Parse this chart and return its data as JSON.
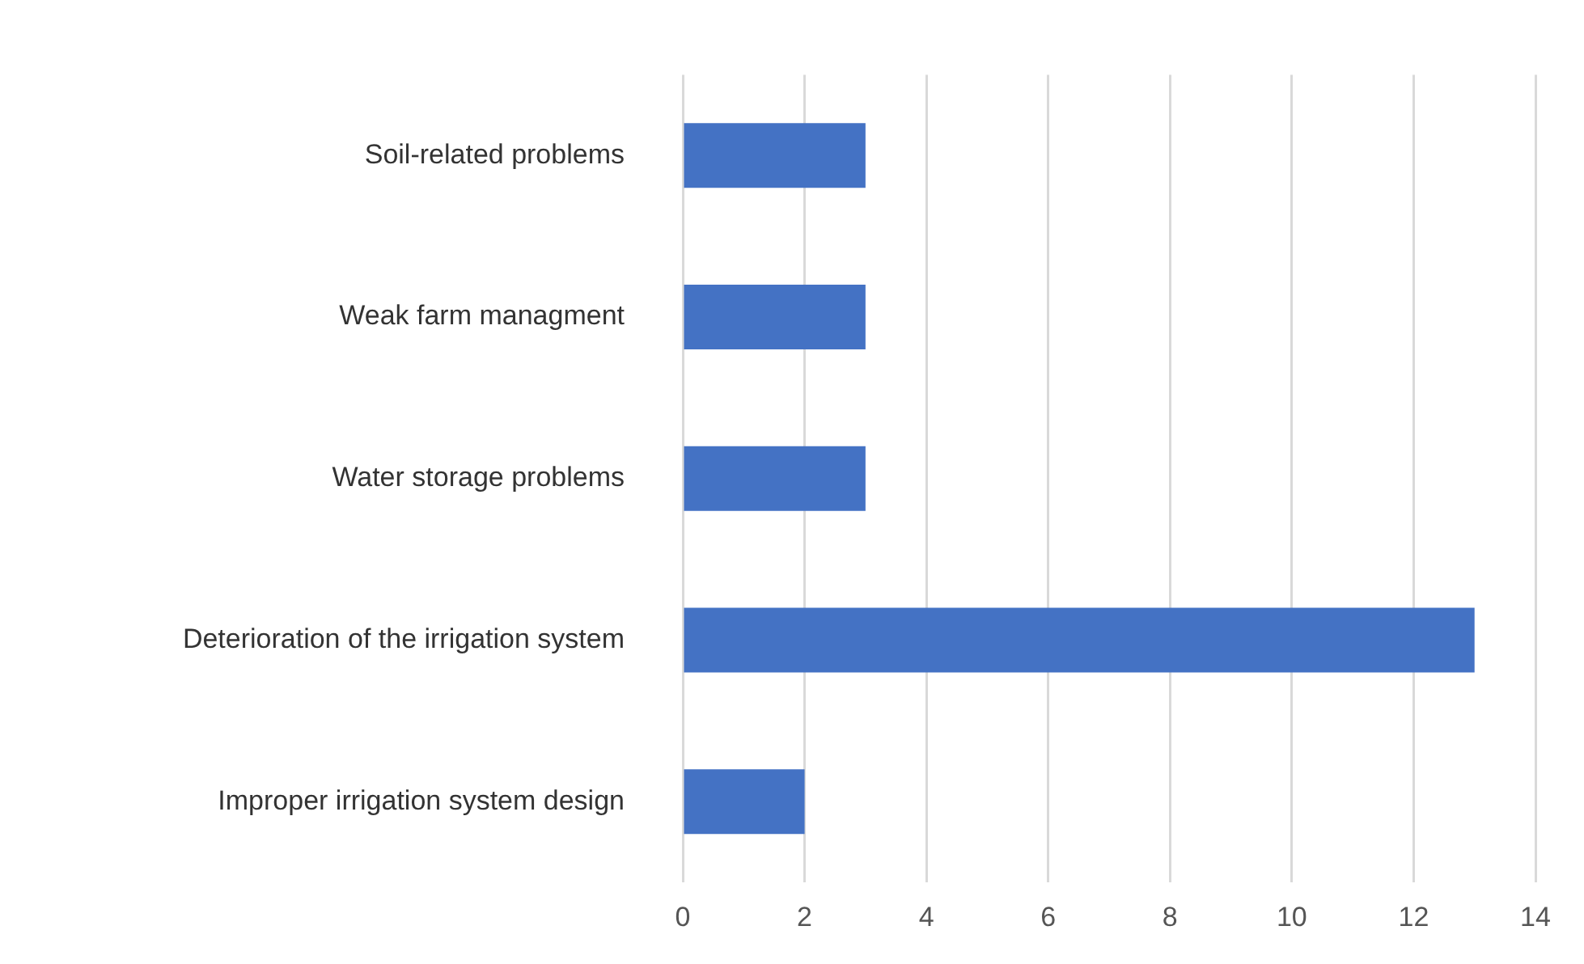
{
  "chart_data": {
    "type": "bar",
    "orientation": "horizontal",
    "categories": [
      "Soil-related problems",
      "Weak farm managment",
      "Water storage problems",
      "Deterioration of the irrigation system",
      "Improper irrigation system design"
    ],
    "values": [
      3,
      3,
      3,
      13,
      2
    ],
    "color": "#4472c4",
    "xlim": [
      0,
      14
    ],
    "xticks": [
      0,
      2,
      4,
      6,
      8,
      10,
      12,
      14
    ],
    "grid": "x",
    "legend": false
  }
}
